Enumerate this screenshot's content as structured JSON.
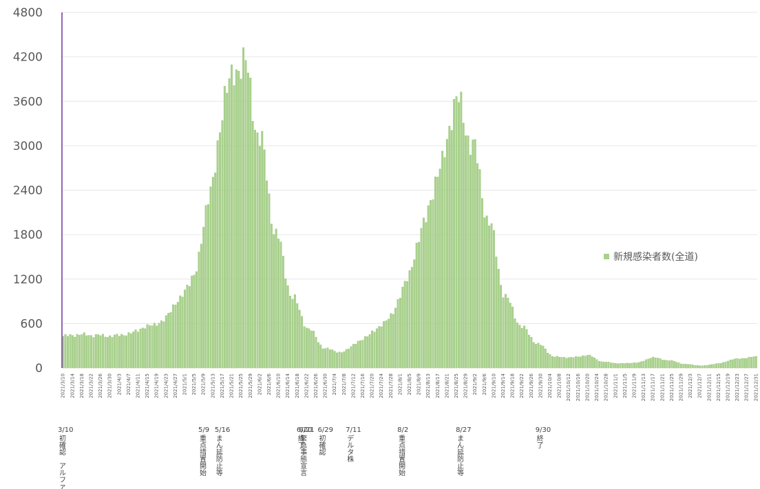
{
  "chart_data": {
    "type": "bar",
    "title": "",
    "xlabel": "",
    "ylabel": "",
    "ylim": [
      0,
      4800
    ],
    "yticks": [
      0,
      600,
      1200,
      1800,
      2400,
      3000,
      3600,
      4200,
      4800
    ],
    "grid": true,
    "legend": {
      "placement": "right",
      "label": "新規感染者数(全道)"
    },
    "colors": {
      "bar": "#a9d18e",
      "bar_edge": "#8fbf6a",
      "reference_line": "#7030a0"
    },
    "x_start": "2021/3/10",
    "x_end": "2021/12/31",
    "x_tick_labels": [
      "2021/3/10",
      "2021/3/14",
      "2021/3/18",
      "2021/3/22",
      "2021/3/26",
      "2021/3/30",
      "2021/4/3",
      "2021/4/7",
      "2021/4/11",
      "2021/4/15",
      "2021/4/19",
      "2021/4/23",
      "2021/4/27",
      "2021/5/1",
      "2021/5/5",
      "2021/5/9",
      "2021/5/13",
      "2021/5/17",
      "2021/5/21",
      "2021/5/25",
      "2021/5/29",
      "2021/6/2",
      "2021/6/6",
      "2021/6/10",
      "2021/6/14",
      "2021/6/18",
      "2021/6/22",
      "2021/6/26",
      "2021/6/30",
      "2021/7/4",
      "2021/7/8",
      "2021/7/12",
      "2021/7/16",
      "2021/7/20",
      "2021/7/24",
      "2021/7/28",
      "2021/8/1",
      "2021/8/5",
      "2021/8/9",
      "2021/8/13",
      "2021/8/17",
      "2021/8/21",
      "2021/8/25",
      "2021/8/29",
      "2021/9/2",
      "2021/9/6",
      "2021/9/10",
      "2021/9/14",
      "2021/9/18",
      "2021/9/22",
      "2021/9/26",
      "2021/9/30",
      "2021/10/4",
      "2021/10/8",
      "2021/10/12",
      "2021/10/16",
      "2021/10/20",
      "2021/10/24",
      "2021/10/28",
      "2021/11/1",
      "2021/11/5",
      "2021/11/9",
      "2021/11/13",
      "2021/11/17",
      "2021/11/21",
      "2021/11/25",
      "2021/11/29",
      "2021/12/3",
      "2021/12/7",
      "2021/12/11",
      "2021/12/15",
      "2021/12/19",
      "2021/12/23",
      "2021/12/27",
      "2021/12/31"
    ],
    "weekly_values": [
      {
        "week_start": "2021/3/10",
        "value": 430
      },
      {
        "week_start": "2021/3/17",
        "value": 450
      },
      {
        "week_start": "2021/3/24",
        "value": 440
      },
      {
        "week_start": "2021/3/31",
        "value": 430
      },
      {
        "week_start": "2021/4/7",
        "value": 460
      },
      {
        "week_start": "2021/4/14",
        "value": 550
      },
      {
        "week_start": "2021/4/21",
        "value": 620
      },
      {
        "week_start": "2021/4/28",
        "value": 900
      },
      {
        "week_start": "2021/5/5",
        "value": 1250
      },
      {
        "week_start": "2021/5/12",
        "value": 2400
      },
      {
        "week_start": "2021/5/19",
        "value": 3800
      },
      {
        "week_start": "2021/5/26",
        "value": 4150
      },
      {
        "week_start": "2021/6/2",
        "value": 3100
      },
      {
        "week_start": "2021/6/9",
        "value": 1800
      },
      {
        "week_start": "2021/6/16",
        "value": 950
      },
      {
        "week_start": "2021/6/23",
        "value": 520
      },
      {
        "week_start": "2021/6/30",
        "value": 260
      },
      {
        "week_start": "2021/7/7",
        "value": 210
      },
      {
        "week_start": "2021/7/14",
        "value": 350
      },
      {
        "week_start": "2021/7/21",
        "value": 500
      },
      {
        "week_start": "2021/7/28",
        "value": 700
      },
      {
        "week_start": "2021/8/4",
        "value": 1200
      },
      {
        "week_start": "2021/8/11",
        "value": 1950
      },
      {
        "week_start": "2021/8/18",
        "value": 2700
      },
      {
        "week_start": "2021/8/25",
        "value": 3620
      },
      {
        "week_start": "2021/9/1",
        "value": 3000
      },
      {
        "week_start": "2021/9/8",
        "value": 1950
      },
      {
        "week_start": "2021/9/15",
        "value": 950
      },
      {
        "week_start": "2021/9/22",
        "value": 550
      },
      {
        "week_start": "2021/9/29",
        "value": 320
      },
      {
        "week_start": "2021/10/6",
        "value": 150
      },
      {
        "week_start": "2021/10/13",
        "value": 140
      },
      {
        "week_start": "2021/10/20",
        "value": 170
      },
      {
        "week_start": "2021/10/27",
        "value": 80
      },
      {
        "week_start": "2021/11/3",
        "value": 60
      },
      {
        "week_start": "2021/11/10",
        "value": 70
      },
      {
        "week_start": "2021/11/17",
        "value": 140
      },
      {
        "week_start": "2021/11/24",
        "value": 100
      },
      {
        "week_start": "2021/12/1",
        "value": 50
      },
      {
        "week_start": "2021/12/8",
        "value": 30
      },
      {
        "week_start": "2021/12/15",
        "value": 60
      },
      {
        "week_start": "2021/12/22",
        "value": 120
      },
      {
        "week_start": "2021/12/31",
        "value": 150
      }
    ],
    "annotations": [
      {
        "date": "3/10",
        "lines": [
          "初",
          "確",
          "認",
          "　",
          "ア",
          "ル",
          "フ",
          "ァ",
          "株"
        ]
      },
      {
        "date": "5/9",
        "lines": [
          "重",
          "点",
          "措",
          "置",
          "開",
          "始"
        ]
      },
      {
        "date": "5/16",
        "lines": [
          "ま",
          "ん",
          "延",
          "防",
          "止",
          "等"
        ]
      },
      {
        "date": "6/20",
        "lines": [
          "終",
          "了"
        ]
      },
      {
        "date": "6/21",
        "lines": [
          "緊",
          "急",
          "事",
          "態",
          "宣",
          "言"
        ]
      },
      {
        "date": "6/29",
        "lines": [
          "初",
          "確",
          "認"
        ]
      },
      {
        "date": "7/11",
        "lines": [
          "デ",
          "ル",
          "タ",
          "株"
        ]
      },
      {
        "date": "8/2",
        "lines": [
          "重",
          "点",
          "措",
          "置",
          "開",
          "始"
        ]
      },
      {
        "date": "8/27",
        "lines": [
          "ま",
          "ん",
          "延",
          "防",
          "止",
          "等"
        ]
      },
      {
        "date": "9/30",
        "lines": [
          "終",
          "了"
        ]
      }
    ]
  }
}
